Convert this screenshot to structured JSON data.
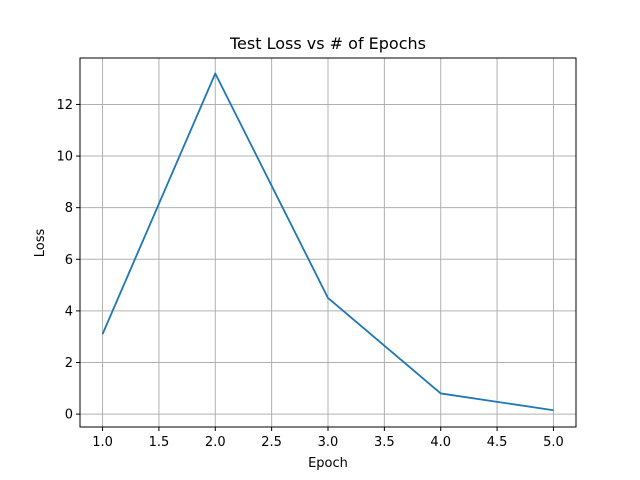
{
  "chart_data": {
    "type": "line",
    "title": "Test Loss vs # of Epochs",
    "xlabel": "Epoch",
    "ylabel": "Loss",
    "xlim": [
      0.8,
      5.2
    ],
    "ylim": [
      -0.5,
      13.8
    ],
    "xticks": [
      1.0,
      1.5,
      2.0,
      2.5,
      3.0,
      3.5,
      4.0,
      4.5,
      5.0
    ],
    "xtick_labels": [
      "1.0",
      "1.5",
      "2.0",
      "2.5",
      "3.0",
      "3.5",
      "4.0",
      "4.5",
      "5.0"
    ],
    "yticks": [
      0,
      2,
      4,
      6,
      8,
      10,
      12
    ],
    "ytick_labels": [
      "0",
      "2",
      "4",
      "6",
      "8",
      "10",
      "12"
    ],
    "grid": true,
    "series": [
      {
        "color": "#1f77b4",
        "x": [
          1,
          2,
          3,
          4,
          5
        ],
        "y": [
          3.1,
          13.2,
          4.5,
          0.8,
          0.15
        ]
      }
    ]
  }
}
